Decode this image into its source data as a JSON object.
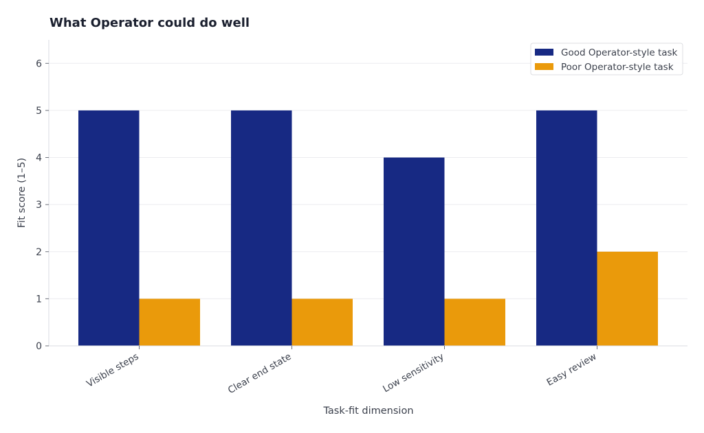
{
  "chart_data": {
    "type": "bar",
    "title": "What Operator could do well",
    "xlabel": "Task-fit dimension",
    "ylabel": "Fit score (1–5)",
    "categories": [
      "Visible steps",
      "Clear end state",
      "Low sensitivity",
      "Easy review"
    ],
    "series": [
      {
        "name": "Good Operator-style task",
        "values": [
          5,
          5,
          4,
          5
        ],
        "color": "#172983"
      },
      {
        "name": "Poor Operator-style task",
        "values": [
          1,
          1,
          1,
          2
        ],
        "color": "#ea9a0b"
      }
    ],
    "ylim": [
      0,
      6.5
    ],
    "yticks": [
      0,
      1,
      2,
      3,
      4,
      5,
      6
    ],
    "grid": "horizontal",
    "legend": "top-right",
    "axis_color": "#d9dbe0",
    "grid_color": "#ececef"
  }
}
